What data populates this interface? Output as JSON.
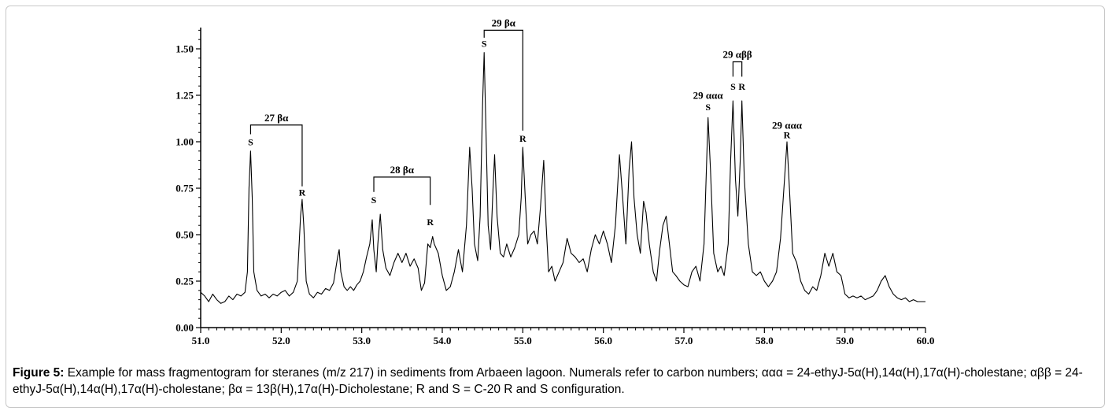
{
  "chart_data": {
    "type": "line",
    "title": "",
    "xlabel": "",
    "ylabel": "",
    "xlim": [
      51.0,
      60.0
    ],
    "ylim": [
      0.0,
      1.6
    ],
    "x_ticks": [
      "51.0",
      "52.0",
      "53.0",
      "54.0",
      "55.0",
      "56.0",
      "57.0",
      "58.0",
      "59.0",
      "60.0"
    ],
    "y_ticks": [
      "0.00",
      "0.25",
      "0.50",
      "0.75",
      "1.00",
      "1.25",
      "1.50"
    ],
    "x_tick_values": [
      51.0,
      52.0,
      53.0,
      54.0,
      55.0,
      56.0,
      57.0,
      58.0,
      59.0,
      60.0
    ],
    "y_tick_values": [
      0.0,
      0.25,
      0.5,
      0.75,
      1.0,
      1.25,
      1.5
    ],
    "series": [
      {
        "points": [
          [
            51.0,
            0.19
          ],
          [
            51.05,
            0.17
          ],
          [
            51.1,
            0.14
          ],
          [
            51.15,
            0.18
          ],
          [
            51.2,
            0.15
          ],
          [
            51.25,
            0.13
          ],
          [
            51.3,
            0.14
          ],
          [
            51.35,
            0.17
          ],
          [
            51.4,
            0.15
          ],
          [
            51.45,
            0.18
          ],
          [
            51.5,
            0.17
          ],
          [
            51.55,
            0.19
          ],
          [
            51.58,
            0.3
          ],
          [
            51.6,
            0.75
          ],
          [
            51.62,
            0.95
          ],
          [
            51.64,
            0.7
          ],
          [
            51.66,
            0.3
          ],
          [
            51.7,
            0.2
          ],
          [
            51.75,
            0.17
          ],
          [
            51.8,
            0.18
          ],
          [
            51.85,
            0.16
          ],
          [
            51.9,
            0.18
          ],
          [
            51.95,
            0.17
          ],
          [
            52.0,
            0.19
          ],
          [
            52.05,
            0.2
          ],
          [
            52.1,
            0.17
          ],
          [
            52.15,
            0.19
          ],
          [
            52.2,
            0.25
          ],
          [
            52.24,
            0.6
          ],
          [
            52.26,
            0.69
          ],
          [
            52.28,
            0.55
          ],
          [
            52.31,
            0.25
          ],
          [
            52.35,
            0.18
          ],
          [
            52.4,
            0.16
          ],
          [
            52.45,
            0.19
          ],
          [
            52.5,
            0.18
          ],
          [
            52.55,
            0.21
          ],
          [
            52.6,
            0.2
          ],
          [
            52.65,
            0.24
          ],
          [
            52.7,
            0.38
          ],
          [
            52.72,
            0.42
          ],
          [
            52.74,
            0.3
          ],
          [
            52.78,
            0.22
          ],
          [
            52.82,
            0.2
          ],
          [
            52.86,
            0.22
          ],
          [
            52.9,
            0.2
          ],
          [
            52.94,
            0.23
          ],
          [
            52.98,
            0.25
          ],
          [
            53.02,
            0.3
          ],
          [
            53.06,
            0.38
          ],
          [
            53.1,
            0.45
          ],
          [
            53.13,
            0.58
          ],
          [
            53.15,
            0.42
          ],
          [
            53.18,
            0.3
          ],
          [
            53.2,
            0.45
          ],
          [
            53.23,
            0.61
          ],
          [
            53.26,
            0.42
          ],
          [
            53.3,
            0.32
          ],
          [
            53.35,
            0.28
          ],
          [
            53.4,
            0.35
          ],
          [
            53.45,
            0.4
          ],
          [
            53.5,
            0.35
          ],
          [
            53.55,
            0.4
          ],
          [
            53.6,
            0.33
          ],
          [
            53.65,
            0.37
          ],
          [
            53.7,
            0.32
          ],
          [
            53.74,
            0.2
          ],
          [
            53.78,
            0.24
          ],
          [
            53.82,
            0.45
          ],
          [
            53.85,
            0.43
          ],
          [
            53.88,
            0.49
          ],
          [
            53.9,
            0.45
          ],
          [
            53.95,
            0.4
          ],
          [
            54.0,
            0.28
          ],
          [
            54.05,
            0.2
          ],
          [
            54.1,
            0.22
          ],
          [
            54.15,
            0.3
          ],
          [
            54.2,
            0.42
          ],
          [
            54.25,
            0.3
          ],
          [
            54.3,
            0.55
          ],
          [
            54.34,
            0.97
          ],
          [
            54.37,
            0.75
          ],
          [
            54.4,
            0.45
          ],
          [
            54.44,
            0.36
          ],
          [
            54.47,
            0.6
          ],
          [
            54.5,
            1.2
          ],
          [
            54.52,
            1.48
          ],
          [
            54.54,
            1.1
          ],
          [
            54.57,
            0.55
          ],
          [
            54.6,
            0.42
          ],
          [
            54.63,
            0.75
          ],
          [
            54.65,
            0.93
          ],
          [
            54.68,
            0.6
          ],
          [
            54.72,
            0.4
          ],
          [
            54.76,
            0.38
          ],
          [
            54.8,
            0.45
          ],
          [
            54.85,
            0.38
          ],
          [
            54.9,
            0.43
          ],
          [
            54.95,
            0.5
          ],
          [
            54.98,
            0.7
          ],
          [
            55.0,
            0.97
          ],
          [
            55.03,
            0.7
          ],
          [
            55.06,
            0.45
          ],
          [
            55.1,
            0.5
          ],
          [
            55.14,
            0.52
          ],
          [
            55.18,
            0.45
          ],
          [
            55.22,
            0.65
          ],
          [
            55.26,
            0.9
          ],
          [
            55.29,
            0.55
          ],
          [
            55.32,
            0.3
          ],
          [
            55.36,
            0.33
          ],
          [
            55.4,
            0.25
          ],
          [
            55.45,
            0.3
          ],
          [
            55.5,
            0.35
          ],
          [
            55.55,
            0.48
          ],
          [
            55.6,
            0.4
          ],
          [
            55.65,
            0.38
          ],
          [
            55.7,
            0.35
          ],
          [
            55.75,
            0.37
          ],
          [
            55.8,
            0.3
          ],
          [
            55.85,
            0.42
          ],
          [
            55.9,
            0.5
          ],
          [
            55.95,
            0.45
          ],
          [
            56.0,
            0.52
          ],
          [
            56.05,
            0.45
          ],
          [
            56.1,
            0.35
          ],
          [
            56.15,
            0.55
          ],
          [
            56.2,
            0.93
          ],
          [
            56.24,
            0.7
          ],
          [
            56.28,
            0.45
          ],
          [
            56.32,
            0.85
          ],
          [
            56.35,
            1.0
          ],
          [
            56.38,
            0.7
          ],
          [
            56.42,
            0.5
          ],
          [
            56.46,
            0.4
          ],
          [
            56.5,
            0.68
          ],
          [
            56.53,
            0.62
          ],
          [
            56.57,
            0.45
          ],
          [
            56.62,
            0.3
          ],
          [
            56.66,
            0.25
          ],
          [
            56.7,
            0.42
          ],
          [
            56.74,
            0.55
          ],
          [
            56.78,
            0.6
          ],
          [
            56.82,
            0.45
          ],
          [
            56.86,
            0.3
          ],
          [
            56.9,
            0.28
          ],
          [
            56.95,
            0.25
          ],
          [
            57.0,
            0.23
          ],
          [
            57.05,
            0.22
          ],
          [
            57.1,
            0.3
          ],
          [
            57.15,
            0.33
          ],
          [
            57.2,
            0.25
          ],
          [
            57.25,
            0.45
          ],
          [
            57.3,
            1.13
          ],
          [
            57.33,
            0.85
          ],
          [
            57.37,
            0.4
          ],
          [
            57.42,
            0.3
          ],
          [
            57.46,
            0.33
          ],
          [
            57.5,
            0.28
          ],
          [
            57.55,
            0.45
          ],
          [
            57.58,
            0.9
          ],
          [
            57.61,
            1.22
          ],
          [
            57.64,
            0.8
          ],
          [
            57.67,
            0.6
          ],
          [
            57.7,
            0.9
          ],
          [
            57.72,
            1.22
          ],
          [
            57.75,
            0.8
          ],
          [
            57.8,
            0.45
          ],
          [
            57.85,
            0.3
          ],
          [
            57.9,
            0.28
          ],
          [
            57.95,
            0.3
          ],
          [
            58.0,
            0.25
          ],
          [
            58.05,
            0.22
          ],
          [
            58.1,
            0.25
          ],
          [
            58.15,
            0.3
          ],
          [
            58.2,
            0.48
          ],
          [
            58.25,
            0.8
          ],
          [
            58.28,
            1.0
          ],
          [
            58.31,
            0.75
          ],
          [
            58.35,
            0.4
          ],
          [
            58.4,
            0.35
          ],
          [
            58.45,
            0.25
          ],
          [
            58.5,
            0.2
          ],
          [
            58.55,
            0.18
          ],
          [
            58.6,
            0.22
          ],
          [
            58.65,
            0.2
          ],
          [
            58.7,
            0.28
          ],
          [
            58.75,
            0.4
          ],
          [
            58.8,
            0.33
          ],
          [
            58.85,
            0.4
          ],
          [
            58.9,
            0.3
          ],
          [
            58.95,
            0.28
          ],
          [
            59.0,
            0.18
          ],
          [
            59.05,
            0.16
          ],
          [
            59.1,
            0.17
          ],
          [
            59.15,
            0.16
          ],
          [
            59.2,
            0.17
          ],
          [
            59.25,
            0.15
          ],
          [
            59.3,
            0.16
          ],
          [
            59.35,
            0.17
          ],
          [
            59.4,
            0.2
          ],
          [
            59.45,
            0.25
          ],
          [
            59.5,
            0.28
          ],
          [
            59.55,
            0.22
          ],
          [
            59.6,
            0.18
          ],
          [
            59.65,
            0.16
          ],
          [
            59.7,
            0.15
          ],
          [
            59.75,
            0.16
          ],
          [
            59.8,
            0.14
          ],
          [
            59.85,
            0.15
          ],
          [
            59.9,
            0.14
          ],
          [
            59.95,
            0.14
          ],
          [
            60.0,
            0.14
          ]
        ]
      }
    ],
    "peak_labels": [
      {
        "text": "S",
        "x": 51.62,
        "y": 0.98
      },
      {
        "text": "R",
        "x": 52.26,
        "y": 0.71
      },
      {
        "text": "S",
        "x": 53.15,
        "y": 0.67
      },
      {
        "text": "R",
        "x": 53.85,
        "y": 0.55
      },
      {
        "text": "S",
        "x": 54.52,
        "y": 1.51
      },
      {
        "text": "R",
        "x": 55.0,
        "y": 1.0
      },
      {
        "text": "S",
        "x": 57.3,
        "y": 1.17
      },
      {
        "text": "S",
        "x": 57.61,
        "y": 1.28
      },
      {
        "text": "R",
        "x": 57.72,
        "y": 1.28
      },
      {
        "text": "R",
        "x": 58.28,
        "y": 1.02
      }
    ],
    "groups": [
      {
        "text": "27 βα",
        "x1": 51.62,
        "x2": 52.26,
        "y_top": 1.09,
        "y1_end": 1.04,
        "y2_end": 0.76
      },
      {
        "text": "28 βα",
        "x1": 53.15,
        "x2": 53.85,
        "y_top": 0.81,
        "y1_end": 0.73,
        "y2_end": 0.66
      },
      {
        "text": "29 βα",
        "x1": 54.52,
        "x2": 55.0,
        "y_top": 1.6,
        "y1_end": 1.56,
        "y2_end": 1.06
      },
      {
        "text": "29 αββ",
        "x1": 57.61,
        "x2": 57.72,
        "y_top": 1.43,
        "y1_end": 1.35,
        "y2_end": 1.35
      },
      {
        "text": "29 ααα",
        "x": 57.3,
        "y": 1.23
      },
      {
        "text": "29 ααα",
        "x": 58.28,
        "y": 1.07
      }
    ]
  },
  "caption": {
    "label": "Figure 5:",
    "text": " Example for mass fragmentogram for steranes (m/z 217) in sediments from Arbaeen lagoon. Numerals refer to carbon numbers; ααα = 24-ethyJ-5α(H),14α(H),17α(H)-cholestane; αββ = 24-ethyJ-5α(H),14α(H),17α(H)-cholestane; βα = 13β(H),17α(H)-Dicholestane; R and S = C-20 R and S configuration."
  }
}
